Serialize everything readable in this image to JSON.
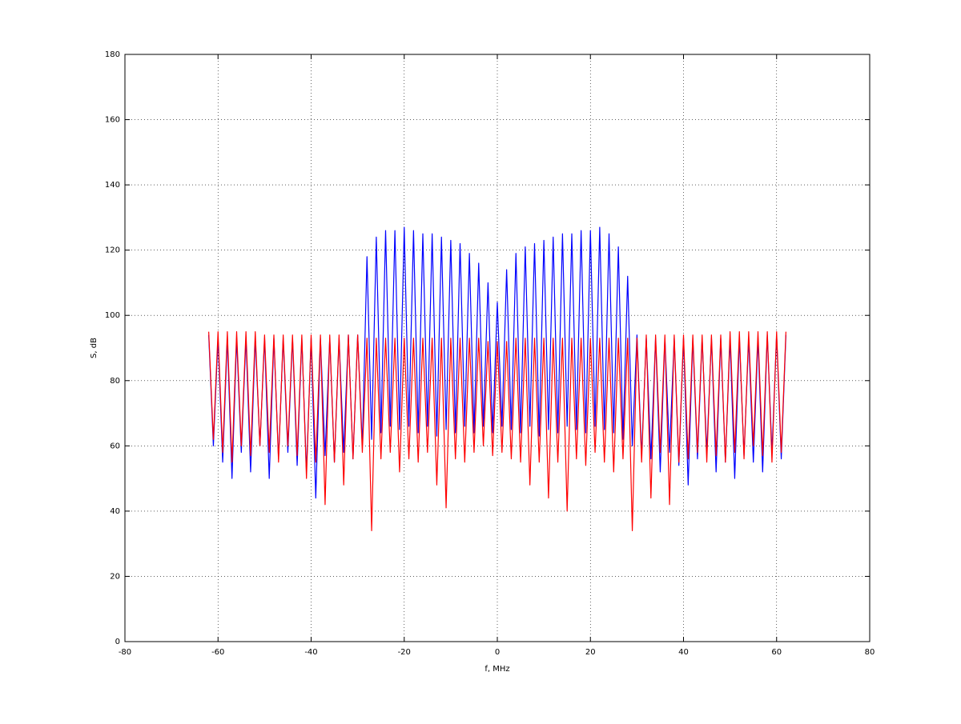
{
  "chart_data": {
    "type": "line",
    "xlabel": "f, MHz",
    "ylabel": "S, dB",
    "x": [
      -62,
      -61,
      -60,
      -59,
      -58,
      -57,
      -56,
      -55,
      -54,
      -53,
      -52,
      -51,
      -50,
      -49,
      -48,
      -47,
      -46,
      -45,
      -44,
      -43,
      -42,
      -41,
      -40,
      -39,
      -38,
      -37,
      -36,
      -35,
      -34,
      -33,
      -32,
      -31,
      -30,
      -29,
      -28,
      -27,
      -26,
      -25,
      -24,
      -23,
      -22,
      -21,
      -20,
      -19,
      -18,
      -17,
      -16,
      -15,
      -14,
      -13,
      -12,
      -11,
      -10,
      -9,
      -8,
      -7,
      -6,
      -5,
      -4,
      -3,
      -2,
      -1,
      0,
      1,
      2,
      3,
      4,
      5,
      6,
      7,
      8,
      9,
      10,
      11,
      12,
      13,
      14,
      15,
      16,
      17,
      18,
      19,
      20,
      21,
      22,
      23,
      24,
      25,
      26,
      27,
      28,
      29,
      30,
      31,
      32,
      33,
      34,
      35,
      36,
      37,
      38,
      39,
      40,
      41,
      42,
      43,
      44,
      45,
      46,
      47,
      48,
      49,
      50,
      51,
      52,
      53,
      54,
      55,
      56,
      57,
      58,
      59,
      60,
      61,
      62
    ],
    "series": [
      {
        "color": "#0000ff",
        "values": [
          94,
          60,
          93,
          55,
          93,
          50,
          93,
          58,
          93,
          52,
          93,
          60,
          93,
          50,
          93,
          56,
          93,
          58,
          93,
          54,
          93,
          52,
          93,
          44,
          93,
          57,
          93,
          55,
          93,
          58,
          94,
          56,
          94,
          60,
          118,
          62,
          124,
          64,
          126,
          66,
          126,
          65,
          127,
          66,
          126,
          64,
          125,
          66,
          125,
          63,
          124,
          65,
          123,
          64,
          122,
          66,
          119,
          64,
          116,
          66,
          110,
          64,
          104,
          66,
          114,
          65,
          119,
          64,
          121,
          66,
          122,
          63,
          123,
          65,
          124,
          64,
          125,
          66,
          125,
          65,
          126,
          64,
          126,
          66,
          127,
          65,
          125,
          64,
          121,
          62,
          112,
          60,
          94,
          57,
          93,
          56,
          93,
          52,
          93,
          58,
          93,
          54,
          93,
          48,
          93,
          56,
          93,
          58,
          93,
          52,
          93,
          55,
          93,
          50,
          93,
          57,
          93,
          55,
          93,
          52,
          94,
          58,
          94,
          56,
          94
        ]
      },
      {
        "color": "#ff0000",
        "values": [
          95,
          62,
          95,
          58,
          95,
          55,
          95,
          60,
          95,
          57,
          95,
          60,
          94,
          58,
          94,
          55,
          94,
          60,
          94,
          57,
          94,
          50,
          94,
          55,
          94,
          42,
          94,
          55,
          94,
          48,
          94,
          56,
          94,
          58,
          93,
          34,
          93,
          56,
          93,
          58,
          93,
          52,
          93,
          56,
          93,
          55,
          93,
          58,
          93,
          48,
          93,
          41,
          93,
          56,
          93,
          55,
          93,
          58,
          93,
          60,
          92,
          57,
          92,
          58,
          92,
          56,
          93,
          55,
          93,
          48,
          93,
          55,
          93,
          44,
          93,
          55,
          93,
          40,
          93,
          56,
          93,
          54,
          93,
          58,
          93,
          55,
          93,
          52,
          93,
          56,
          93,
          34,
          93,
          55,
          94,
          44,
          94,
          58,
          94,
          42,
          94,
          55,
          94,
          56,
          94,
          58,
          94,
          55,
          94,
          57,
          94,
          55,
          95,
          58,
          95,
          56,
          95,
          60,
          95,
          57,
          95,
          55,
          95,
          58,
          95
        ]
      }
    ],
    "xlim": [
      -80,
      80
    ],
    "xticks": [
      -80,
      -60,
      -40,
      -20,
      0,
      20,
      40,
      60,
      80
    ],
    "ylim": [
      0,
      180
    ],
    "yticks": [
      0,
      20,
      40,
      60,
      80,
      100,
      120,
      140,
      160,
      180
    ],
    "grid": true
  }
}
